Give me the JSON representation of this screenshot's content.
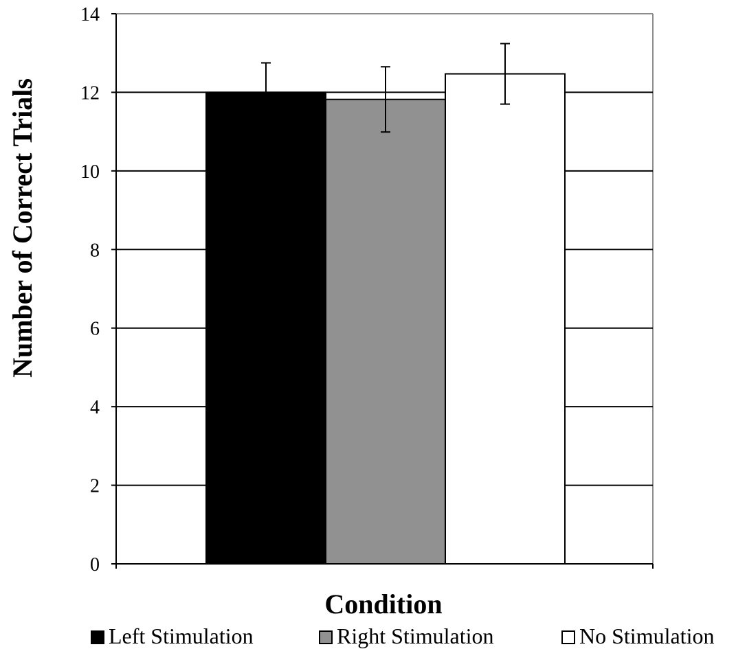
{
  "chart_data": {
    "type": "bar",
    "title": "",
    "xlabel": "Condition",
    "ylabel": "Number of Correct Trials",
    "ylim": [
      0,
      14
    ],
    "yticks": [
      0,
      2,
      4,
      6,
      8,
      10,
      12,
      14
    ],
    "yticks_labels": [
      "0",
      "2",
      "4",
      "6",
      "8",
      "10",
      "12",
      "14"
    ],
    "grid": true,
    "legend_position": "bottom",
    "series": [
      {
        "name": "Left Stimulation",
        "value": 12.0,
        "error": 0.75,
        "color": "#000000"
      },
      {
        "name": "Right Stimulation",
        "value": 11.82,
        "error": 0.83,
        "color": "#919191"
      },
      {
        "name": "No Stimulation",
        "value": 12.47,
        "error": 0.77,
        "color": "#ffffff"
      }
    ]
  }
}
